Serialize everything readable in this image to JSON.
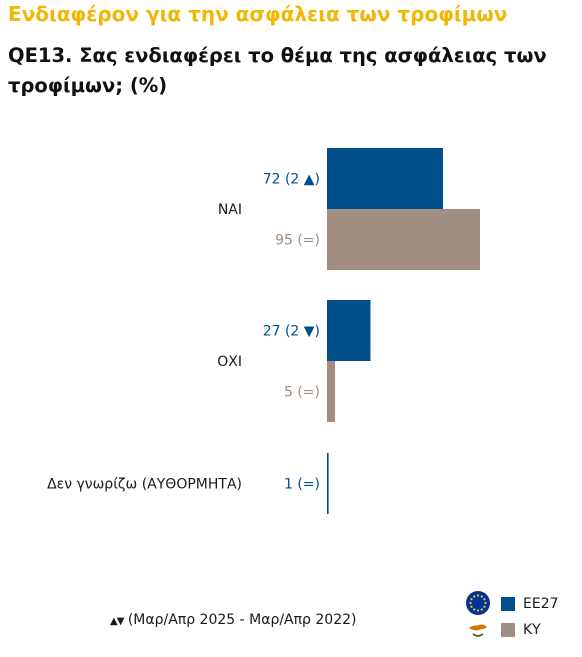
{
  "title": "Ενδιαφέρον για την ασφάλεια των τροφίμων",
  "question": "QE13. Σας ενδιαφέρει το θέμα της ασφάλειας των τροφίμων; (%)",
  "colors": {
    "eu27": "#00508A",
    "cy": "#A08E82",
    "title": "#F2B705"
  },
  "chart_data": {
    "type": "bar",
    "orientation": "horizontal",
    "categories": [
      "ΝΑΙ",
      "ΟΧΙ",
      "Δεν γνωρίζω (ΑΥΘΟΡΜΗΤΑ)"
    ],
    "series": [
      {
        "name": "ΕΕ27",
        "values": [
          72,
          27,
          1
        ],
        "labels": [
          "72 (2 ▲)",
          "27 (2 ▼)",
          "1 (=)"
        ]
      },
      {
        "name": "ΚΥ",
        "values": [
          95,
          5,
          null
        ],
        "labels": [
          "95 (=)",
          "5 (=)",
          ""
        ]
      }
    ],
    "xlim": [
      0,
      100
    ]
  },
  "legend": {
    "eu27": "ΕΕ27",
    "cy": "ΚΥ"
  },
  "footnote": "(Μαρ/Απρ 2025 - Μαρ/Απρ 2022)",
  "footnote_icon": "up-down-triangles"
}
